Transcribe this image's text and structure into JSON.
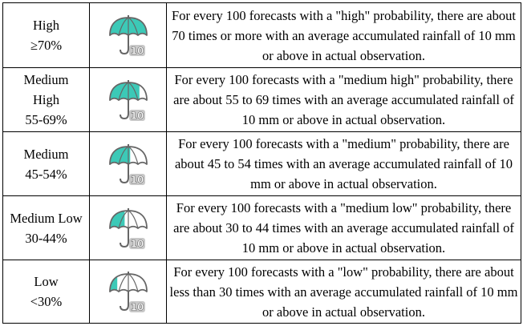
{
  "colors": {
    "fill": "#3cc9b7",
    "outline": "#666666",
    "border": "#000000",
    "number_bg": "#c8c8c8"
  },
  "rows": [
    {
      "level_lines": [
        "High",
        "≥70%"
      ],
      "icon": "umbrella-rain-10mm-icon",
      "fill_fraction": 1.0,
      "description": "For every 100 forecasts with a \"high\" probability, there are about 70 times or more with an average accumulated rainfall of 10 mm or above in actual observation."
    },
    {
      "level_lines": [
        "Medium",
        "High",
        "55-69%"
      ],
      "icon": "umbrella-rain-10mm-icon",
      "fill_fraction": 0.8,
      "description": "For every 100 forecasts with a \"medium high\" probability, there are about 55 to 69 times with an average accumulated rainfall of 10 mm or above in actual observation."
    },
    {
      "level_lines": [
        "Medium",
        "45-54%"
      ],
      "icon": "umbrella-rain-10mm-icon",
      "fill_fraction": 0.55,
      "description": "For every 100 forecasts with a \"medium\" probability, there are about 45 to 54 times with an average accumulated rainfall of 10 mm or above in actual observation."
    },
    {
      "level_lines": [
        "Medium Low",
        "30-44%"
      ],
      "icon": "umbrella-rain-10mm-icon",
      "fill_fraction": 0.4,
      "description": "For every 100 forecasts with a \"medium low\" probability, there are about 30 to 44 times with an average accumulated rainfall of 10 mm or above in actual observation."
    },
    {
      "level_lines": [
        "Low",
        "<30%"
      ],
      "icon": "umbrella-rain-10mm-icon",
      "fill_fraction": 0.2,
      "description": "For every 100 forecasts with a \"low\" probability, there are about less than 30 times with an average accumulated rainfall of 10 mm or above in actual observation."
    }
  ],
  "icon_label": "10"
}
